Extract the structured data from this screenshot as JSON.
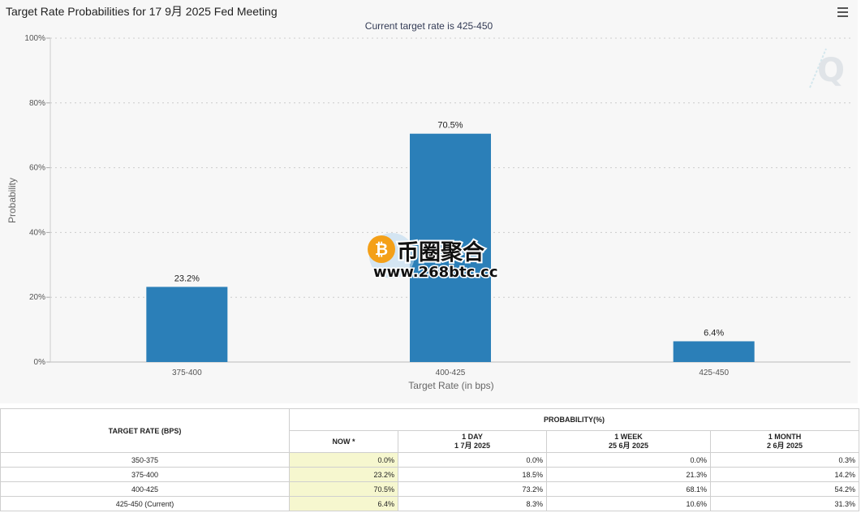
{
  "chart": {
    "title": "Target Rate Probabilities for 17 9月 2025 Fed Meeting",
    "subtitle": "Current target rate is 425-450",
    "menu_icon": "hamburger-menu-icon",
    "watermark": "Q",
    "overlay": {
      "name": "币圈聚合",
      "url": "www.268btc.cc",
      "logo_icon": "bitcoin-icon"
    },
    "colors": {
      "bar": "#2b7fb8",
      "grid": "#cccccc",
      "now_cell": "#f6f7cf"
    }
  },
  "chart_data": {
    "type": "bar",
    "categories": [
      "375-400",
      "400-425",
      "425-450"
    ],
    "values": [
      23.2,
      70.5,
      6.4
    ],
    "data_labels": [
      "23.2%",
      "70.5%",
      "6.4%"
    ],
    "ylim": [
      0,
      100
    ],
    "yticks": [
      0,
      20,
      40,
      60,
      80,
      100
    ],
    "ytick_labels": [
      "0%",
      "20%",
      "40%",
      "60%",
      "80%",
      "100%"
    ],
    "xlabel": "Target Rate (in bps)",
    "ylabel": "Probability",
    "grid": true
  },
  "table": {
    "col_target": "TARGET RATE (BPS)",
    "col_probability": "PROBABILITY(%)",
    "col_now": "NOW *",
    "col_1day": "1 DAY",
    "col_1day_date": "1 7月 2025",
    "col_1week": "1 WEEK",
    "col_1week_date": "25 6月 2025",
    "col_1month": "1 MONTH",
    "col_1month_date": "2 6月 2025",
    "rows": [
      {
        "rate": "350-375",
        "now": "0.0%",
        "day": "0.0%",
        "week": "0.0%",
        "month": "0.3%"
      },
      {
        "rate": "375-400",
        "now": "23.2%",
        "day": "18.5%",
        "week": "21.3%",
        "month": "14.2%"
      },
      {
        "rate": "400-425",
        "now": "70.5%",
        "day": "73.2%",
        "week": "68.1%",
        "month": "54.2%"
      },
      {
        "rate": "425-450 (Current)",
        "now": "6.4%",
        "day": "8.3%",
        "week": "10.6%",
        "month": "31.3%"
      }
    ]
  }
}
